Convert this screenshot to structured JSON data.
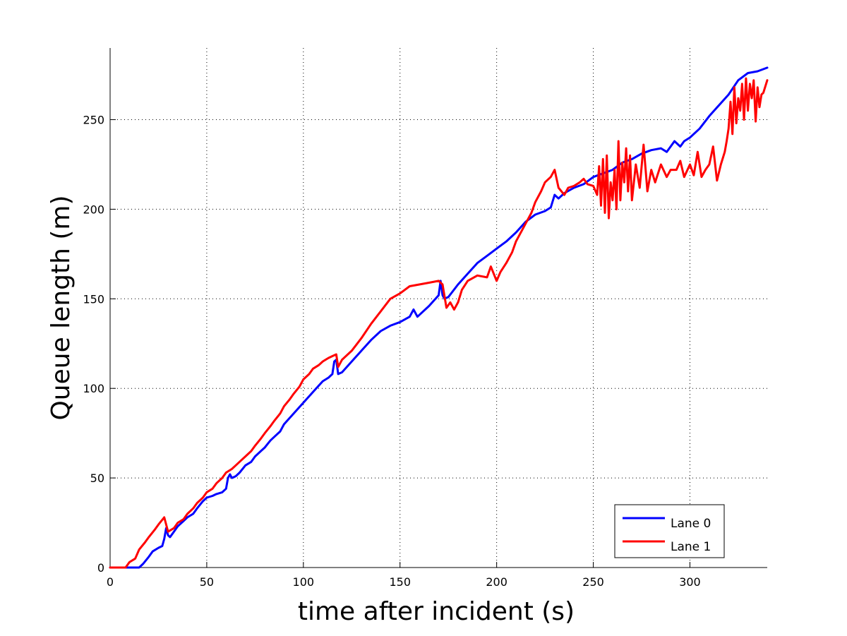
{
  "chart_data": {
    "type": "line",
    "title": "",
    "xlabel": "time after incident (s)",
    "ylabel": "Queue length (m)",
    "xlim": [
      0,
      340
    ],
    "ylim": [
      0,
      290
    ],
    "x_ticks": [
      0,
      50,
      100,
      150,
      200,
      250,
      300
    ],
    "y_ticks": [
      0,
      50,
      100,
      150,
      200,
      250
    ],
    "grid": true,
    "legend_position": "bottom-right",
    "series": [
      {
        "name": "Lane 0",
        "color": "#0000ff",
        "x": [
          0,
          15,
          17,
          20,
          22,
          25,
          27,
          28,
          29,
          30,
          31,
          33,
          35,
          38,
          40,
          43,
          45,
          48,
          50,
          53,
          55,
          58,
          60,
          61,
          62,
          63,
          65,
          67,
          70,
          73,
          75,
          78,
          80,
          83,
          85,
          88,
          90,
          95,
          100,
          105,
          110,
          113,
          115,
          116,
          117,
          118,
          120,
          125,
          130,
          135,
          140,
          145,
          150,
          155,
          157,
          159,
          160,
          165,
          170,
          171,
          172,
          173,
          175,
          180,
          185,
          190,
          195,
          200,
          205,
          210,
          215,
          220,
          225,
          228,
          230,
          232,
          235,
          240,
          245,
          250,
          255,
          260,
          265,
          270,
          275,
          280,
          285,
          288,
          290,
          292,
          295,
          297,
          300,
          305,
          310,
          315,
          320,
          325,
          330,
          335,
          340
        ],
        "y": [
          0,
          0,
          2,
          6,
          9,
          11,
          12,
          16,
          22,
          18,
          17,
          20,
          23,
          26,
          28,
          30,
          33,
          37,
          39,
          40,
          41,
          42,
          44,
          50,
          52,
          50,
          51,
          53,
          57,
          59,
          62,
          65,
          67,
          71,
          73,
          76,
          80,
          86,
          92,
          98,
          104,
          106,
          108,
          115,
          116,
          108,
          109,
          115,
          121,
          127,
          132,
          135,
          137,
          140,
          144,
          140,
          141,
          146,
          152,
          160,
          152,
          150,
          151,
          158,
          164,
          170,
          174,
          178,
          182,
          187,
          193,
          197,
          199,
          201,
          208,
          206,
          209,
          212,
          214,
          218,
          220,
          222,
          226,
          228,
          231,
          233,
          234,
          232,
          235,
          238,
          235,
          238,
          240,
          245,
          252,
          258,
          264,
          272,
          276,
          277,
          279
        ]
      },
      {
        "name": "Lane 1",
        "color": "#ff0000",
        "x": [
          0,
          8,
          10,
          13,
          15,
          18,
          20,
          23,
          25,
          28,
          30,
          33,
          35,
          38,
          40,
          43,
          45,
          48,
          50,
          53,
          55,
          58,
          60,
          63,
          65,
          68,
          70,
          73,
          75,
          78,
          80,
          83,
          85,
          88,
          90,
          93,
          95,
          98,
          100,
          103,
          105,
          108,
          110,
          113,
          115,
          117,
          118,
          120,
          125,
          130,
          135,
          140,
          145,
          150,
          155,
          160,
          165,
          170,
          172,
          174,
          176,
          178,
          180,
          182,
          185,
          190,
          195,
          197,
          200,
          202,
          205,
          208,
          210,
          213,
          215,
          218,
          220,
          223,
          225,
          228,
          230,
          232,
          235,
          237,
          240,
          243,
          245,
          247,
          250,
          252,
          253,
          254,
          255,
          256,
          257,
          258,
          259,
          260,
          261,
          262,
          263,
          264,
          265,
          266,
          267,
          268,
          269,
          270,
          272,
          274,
          276,
          278,
          280,
          282,
          285,
          288,
          290,
          293,
          295,
          297,
          300,
          302,
          304,
          306,
          308,
          310,
          312,
          314,
          316,
          318,
          319,
          320,
          321,
          322,
          323,
          324,
          325,
          326,
          327,
          328,
          329,
          330,
          331,
          332,
          333,
          334,
          335,
          336,
          337,
          338,
          340
        ],
        "y": [
          0,
          0,
          3,
          5,
          10,
          14,
          17,
          21,
          24,
          28,
          20,
          22,
          25,
          27,
          30,
          33,
          36,
          39,
          42,
          44,
          47,
          50,
          53,
          55,
          57,
          60,
          62,
          65,
          68,
          72,
          75,
          79,
          82,
          86,
          90,
          94,
          97,
          101,
          105,
          108,
          111,
          113,
          115,
          117,
          118,
          119,
          112,
          116,
          121,
          128,
          136,
          143,
          150,
          153,
          157,
          158,
          159,
          160,
          158,
          145,
          148,
          144,
          148,
          155,
          160,
          163,
          162,
          168,
          160,
          165,
          170,
          176,
          182,
          188,
          192,
          198,
          204,
          210,
          215,
          218,
          222,
          212,
          208,
          212,
          213,
          215,
          217,
          214,
          213,
          208,
          224,
          202,
          228,
          198,
          230,
          195,
          215,
          205,
          222,
          200,
          238,
          205,
          226,
          215,
          234,
          210,
          230,
          205,
          225,
          212,
          236,
          210,
          222,
          215,
          225,
          218,
          222,
          222,
          227,
          218,
          225,
          219,
          232,
          218,
          222,
          225,
          235,
          216,
          225,
          232,
          238,
          245,
          260,
          242,
          268,
          248,
          262,
          255,
          270,
          250,
          273,
          255,
          270,
          262,
          272,
          249,
          268,
          257,
          264,
          265,
          272
        ]
      }
    ]
  }
}
